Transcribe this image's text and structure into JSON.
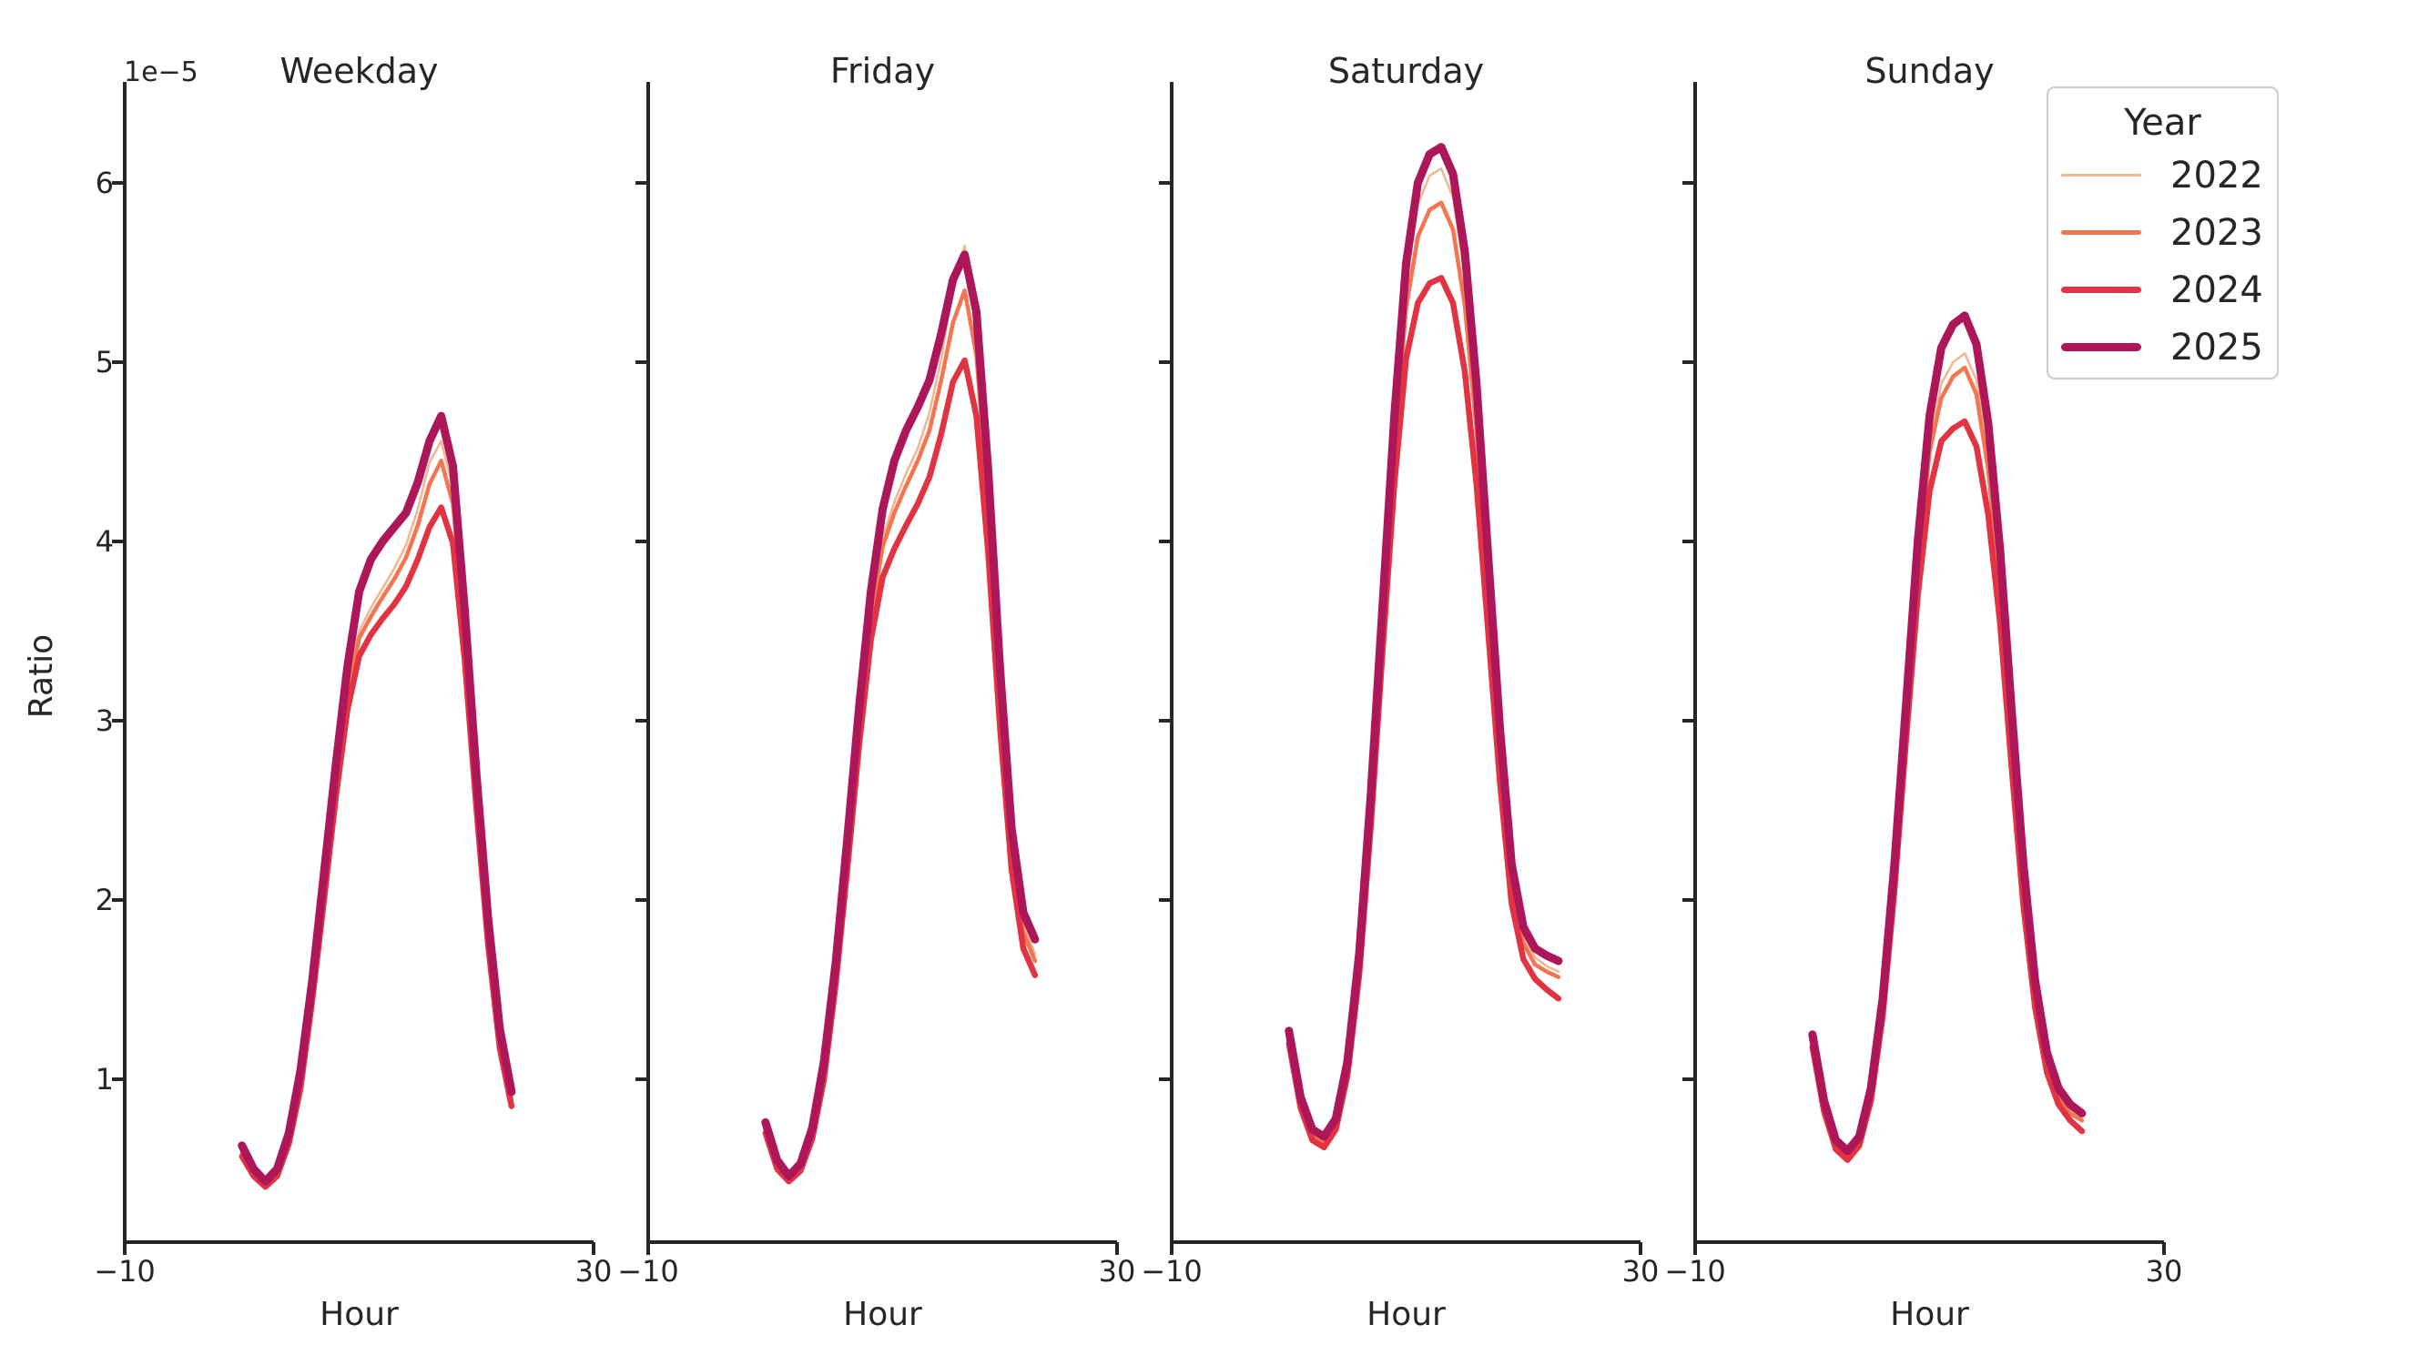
{
  "chart_data": {
    "type": "line",
    "xlabel": "Hour",
    "ylabel": "Ratio",
    "y_offset_label": "1e−5",
    "x_range": [
      -10,
      30
    ],
    "x_ticks": [
      -10,
      30
    ],
    "x_tick_display": [
      "−10",
      "30"
    ],
    "y_ticks": [
      1,
      2,
      3,
      4,
      5,
      6
    ],
    "y_tick_display_topdown": [
      "6",
      "5",
      "4",
      "3",
      "2",
      "1"
    ],
    "y_unit_multiplier": "1e-5",
    "grid": false,
    "legend": {
      "title": "Year",
      "position": "upper right"
    },
    "series_meta": [
      {
        "name": "2022",
        "color": "#f6b48f"
      },
      {
        "name": "2023",
        "color": "#f37651"
      },
      {
        "name": "2024",
        "color": "#e13342"
      },
      {
        "name": "2025",
        "color": "#ad1759"
      }
    ],
    "hours": [
      0,
      1,
      2,
      3,
      4,
      5,
      6,
      7,
      8,
      9,
      10,
      11,
      12,
      13,
      14,
      15,
      16,
      17,
      18,
      19,
      20,
      21,
      22,
      23
    ],
    "facets": [
      {
        "title": "Weekday",
        "series": [
          {
            "name": "2022",
            "values": [
              0.6,
              0.48,
              0.42,
              0.48,
              0.67,
              1.0,
              1.5,
              2.08,
              2.67,
              3.18,
              3.5,
              3.63,
              3.74,
              3.85,
              3.98,
              4.18,
              4.44,
              4.56,
              4.3,
              3.55,
              2.65,
              1.85,
              1.25,
              0.9
            ]
          },
          {
            "name": "2023",
            "values": [
              0.59,
              0.47,
              0.41,
              0.47,
              0.66,
              0.98,
              1.48,
              2.05,
              2.63,
              3.14,
              3.46,
              3.58,
              3.69,
              3.79,
              3.91,
              4.09,
              4.32,
              4.45,
              4.21,
              3.5,
              2.61,
              1.82,
              1.23,
              0.88
            ]
          },
          {
            "name": "2024",
            "values": [
              0.57,
              0.46,
              0.4,
              0.46,
              0.64,
              0.95,
              1.44,
              2.0,
              2.57,
              3.06,
              3.36,
              3.48,
              3.57,
              3.65,
              3.75,
              3.9,
              4.08,
              4.19,
              3.99,
              3.34,
              2.51,
              1.75,
              1.17,
              0.85
            ]
          },
          {
            "name": "2025",
            "values": [
              0.63,
              0.5,
              0.43,
              0.5,
              0.7,
              1.05,
              1.55,
              2.15,
              2.75,
              3.3,
              3.72,
              3.9,
              4.0,
              4.08,
              4.16,
              4.33,
              4.56,
              4.7,
              4.42,
              3.62,
              2.7,
              1.9,
              1.28,
              0.93
            ]
          }
        ]
      },
      {
        "title": "Friday",
        "series": [
          {
            "name": "2022",
            "values": [
              0.73,
              0.52,
              0.44,
              0.51,
              0.7,
              1.06,
              1.6,
              2.28,
              3.0,
              3.62,
              4.02,
              4.22,
              4.38,
              4.52,
              4.72,
              5.02,
              5.42,
              5.65,
              5.2,
              4.3,
              3.22,
              2.33,
              1.86,
              1.7
            ]
          },
          {
            "name": "2023",
            "values": [
              0.72,
              0.52,
              0.44,
              0.5,
              0.69,
              1.04,
              1.58,
              2.25,
              2.96,
              3.57,
              3.97,
              4.16,
              4.31,
              4.45,
              4.62,
              4.9,
              5.22,
              5.4,
              5.04,
              4.2,
              3.14,
              2.28,
              1.82,
              1.66
            ]
          },
          {
            "name": "2024",
            "values": [
              0.7,
              0.5,
              0.43,
              0.49,
              0.67,
              1.0,
              1.53,
              2.18,
              2.87,
              3.45,
              3.8,
              3.96,
              4.09,
              4.21,
              4.36,
              4.6,
              4.89,
              5.01,
              4.7,
              3.94,
              2.97,
              2.17,
              1.73,
              1.58
            ]
          },
          {
            "name": "2025",
            "values": [
              0.76,
              0.55,
              0.46,
              0.53,
              0.73,
              1.1,
              1.65,
              2.35,
              3.08,
              3.72,
              4.18,
              4.45,
              4.62,
              4.75,
              4.9,
              5.16,
              5.46,
              5.6,
              5.28,
              4.4,
              3.3,
              2.4,
              1.93,
              1.78
            ]
          }
        ]
      },
      {
        "title": "Saturday",
        "series": [
          {
            "name": "2022",
            "values": [
              1.24,
              0.87,
              0.69,
              0.65,
              0.75,
              1.06,
              1.65,
              2.53,
              3.56,
              4.6,
              5.42,
              5.88,
              6.04,
              6.08,
              5.92,
              5.48,
              4.75,
              3.82,
              2.89,
              2.15,
              1.8,
              1.68,
              1.63,
              1.6
            ]
          },
          {
            "name": "2023",
            "values": [
              1.23,
              0.86,
              0.68,
              0.64,
              0.74,
              1.05,
              1.63,
              2.5,
              3.52,
              4.52,
              5.3,
              5.7,
              5.85,
              5.89,
              5.74,
              5.32,
              4.62,
              3.72,
              2.82,
              2.1,
              1.76,
              1.64,
              1.6,
              1.57
            ]
          },
          {
            "name": "2024",
            "values": [
              1.2,
              0.84,
              0.66,
              0.62,
              0.72,
              1.02,
              1.58,
              2.42,
              3.4,
              4.32,
              5.02,
              5.33,
              5.44,
              5.47,
              5.33,
              4.95,
              4.32,
              3.5,
              2.66,
              1.98,
              1.67,
              1.56,
              1.5,
              1.45
            ]
          },
          {
            "name": "2025",
            "values": [
              1.27,
              0.9,
              0.72,
              0.68,
              0.78,
              1.1,
              1.7,
              2.6,
              3.65,
              4.7,
              5.55,
              6.0,
              6.16,
              6.2,
              6.05,
              5.62,
              4.88,
              3.92,
              2.96,
              2.2,
              1.85,
              1.73,
              1.69,
              1.66
            ]
          }
        ]
      },
      {
        "title": "Sunday",
        "series": [
          {
            "name": "2022",
            "values": [
              1.22,
              0.85,
              0.64,
              0.58,
              0.66,
              0.92,
              1.41,
              2.14,
              3.02,
              3.88,
              4.55,
              4.88,
              5.0,
              5.05,
              4.9,
              4.48,
              3.82,
              2.95,
              2.12,
              1.5,
              1.11,
              0.92,
              0.83,
              0.78
            ]
          },
          {
            "name": "2023",
            "values": [
              1.21,
              0.85,
              0.63,
              0.57,
              0.65,
              0.91,
              1.4,
              2.12,
              3.0,
              3.84,
              4.5,
              4.8,
              4.92,
              4.97,
              4.82,
              4.4,
              3.76,
              2.9,
              2.08,
              1.47,
              1.09,
              0.9,
              0.81,
              0.77
            ]
          },
          {
            "name": "2024",
            "values": [
              1.18,
              0.82,
              0.61,
              0.55,
              0.63,
              0.88,
              1.35,
              2.05,
              2.9,
              3.7,
              4.28,
              4.56,
              4.63,
              4.67,
              4.53,
              4.15,
              3.55,
              2.74,
              1.97,
              1.4,
              1.04,
              0.86,
              0.77,
              0.71
            ]
          },
          {
            "name": "2025",
            "values": [
              1.25,
              0.88,
              0.66,
              0.6,
              0.68,
              0.95,
              1.45,
              2.2,
              3.1,
              4.0,
              4.7,
              5.08,
              5.21,
              5.26,
              5.1,
              4.66,
              3.96,
              3.06,
              2.2,
              1.55,
              1.15,
              0.95,
              0.86,
              0.81
            ]
          }
        ]
      }
    ]
  }
}
